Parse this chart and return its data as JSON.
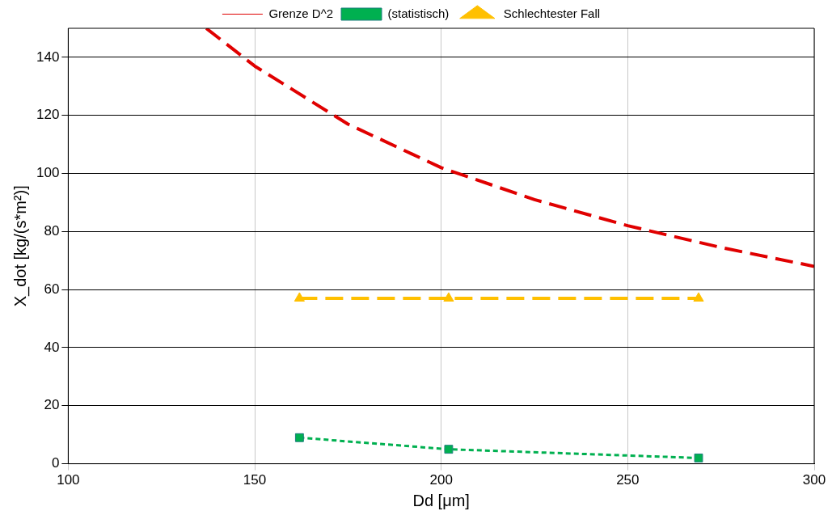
{
  "chart_data": {
    "type": "line",
    "xlabel": "Dd [μm]",
    "ylabel": "X_dot [kg/(s*m²)]",
    "xlim": [
      100,
      300
    ],
    "xticks": [
      100,
      150,
      200,
      250,
      300
    ],
    "ylim": [
      0,
      150
    ],
    "yticks": [
      0,
      20,
      40,
      60,
      80,
      100,
      120,
      140
    ],
    "grid": true,
    "legend": "top",
    "series": [
      {
        "name": "Grenze D^2",
        "color": "#e00000",
        "marker": "none",
        "line_style": "dashed",
        "x": [
          137,
          150,
          175,
          200,
          225,
          250,
          275,
          300
        ],
        "values": [
          150,
          137,
          117,
          102,
          91,
          82,
          74.5,
          68
        ]
      },
      {
        "name": "(statistisch)",
        "color": "#00b050",
        "marker": "square",
        "line_style": "dotted",
        "x": [
          162,
          202,
          269
        ],
        "values": [
          9,
          5,
          2
        ]
      },
      {
        "name": "Schlechtester Fall",
        "color": "#ffc000",
        "marker": "triangle",
        "line_style": "dashed",
        "x": [
          162,
          202,
          269
        ],
        "values": [
          57,
          57,
          57
        ]
      }
    ]
  }
}
